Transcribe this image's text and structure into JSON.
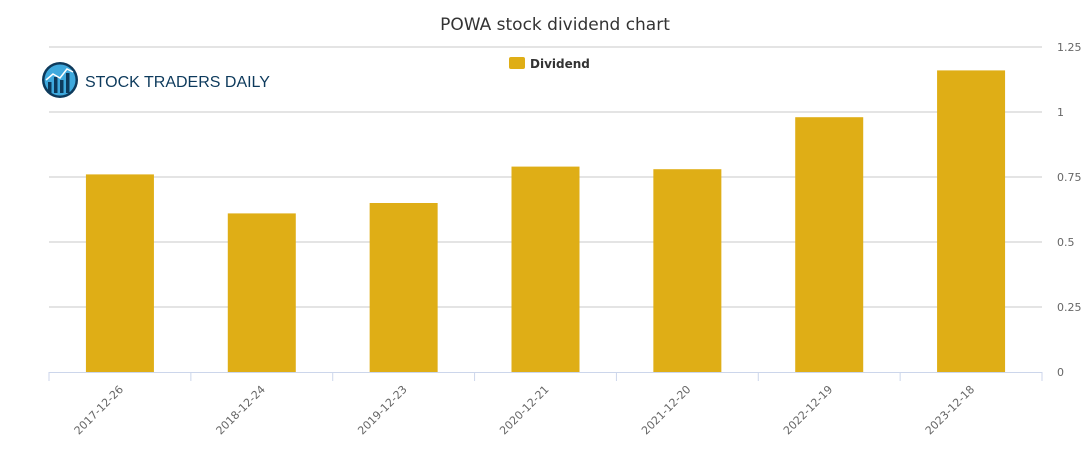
{
  "logo": {
    "text": "STOCK TRADERS DAILY",
    "icon": "bar-chart-globe-icon"
  },
  "colors": {
    "bar": "#dfae16",
    "grid": "#c8c8c8",
    "axis": "#ccd6eb",
    "logo_blue": "#0d3a5c"
  },
  "chart_data": {
    "type": "bar",
    "title": "POWA stock dividend chart",
    "xlabel": "",
    "ylabel": "",
    "categories": [
      "2017-12-26",
      "2018-12-24",
      "2019-12-23",
      "2020-12-21",
      "2021-12-20",
      "2022-12-19",
      "2023-12-18"
    ],
    "series": [
      {
        "name": "Dividend",
        "values": [
          0.76,
          0.61,
          0.65,
          0.79,
          0.78,
          0.98,
          1.16
        ]
      }
    ],
    "ylim": [
      0,
      1.25
    ],
    "yticks": [
      0,
      0.25,
      0.5,
      0.75,
      1,
      1.25
    ],
    "ytick_labels": [
      "0",
      "0.25",
      "0.5",
      "0.75",
      "1",
      "1.25"
    ],
    "y_axis_side": "right",
    "grid": true,
    "legend_position": "top-center"
  }
}
